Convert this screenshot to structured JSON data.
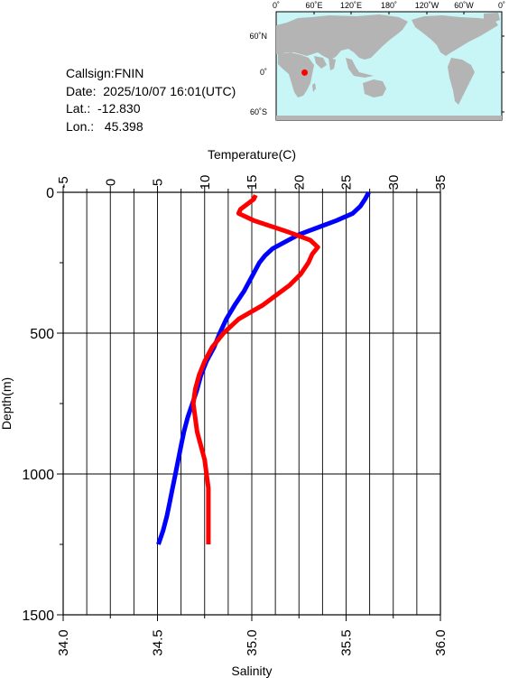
{
  "info": {
    "callsign": "Callsign:FNIN",
    "date": "Date:  2025/10/07 16:01(UTC)",
    "lat": "Lat.:  -12.830",
    "lon": "Lon.:   45.398"
  },
  "map": {
    "top_labels": [
      "0˚",
      "60˚E",
      "120˚E",
      "180˚",
      "120˚W",
      "60˚W",
      "0˚"
    ],
    "right_labels": [
      "60˚N",
      "0˚",
      "60˚S"
    ],
    "ocean_color": "#c8f5f5",
    "land_color": "#b4b4b4",
    "marker_color": "#ff0000",
    "station": {
      "lon": 45.398,
      "lat": -12.83
    }
  },
  "chart_data": {
    "type": "line",
    "title": "",
    "temperature_axis": {
      "label": "Temperature(C)",
      "ticks": [
        -5,
        0,
        5,
        10,
        15,
        20,
        25,
        30,
        35
      ],
      "range": [
        -5,
        35
      ]
    },
    "salinity_axis": {
      "label": "Salinity",
      "ticks": [
        "34.0",
        "34.5",
        "35.0",
        "35.5",
        "36.0"
      ],
      "range": [
        34.0,
        36.0
      ]
    },
    "depth_axis": {
      "label": "Depth(m)",
      "ticks": [
        0,
        500,
        1000,
        1500
      ],
      "range": [
        0,
        1500
      ],
      "inverted": true
    },
    "grid": true,
    "series": [
      {
        "color": "#0000ff",
        "axis": "temperature",
        "points": [
          [
            27.4,
            0
          ],
          [
            27.0,
            25
          ],
          [
            26.5,
            50
          ],
          [
            25.7,
            75
          ],
          [
            24.0,
            100
          ],
          [
            22.0,
            125
          ],
          [
            20.0,
            150
          ],
          [
            18.6,
            175
          ],
          [
            17.2,
            200
          ],
          [
            16.4,
            225
          ],
          [
            15.8,
            250
          ],
          [
            15.0,
            300
          ],
          [
            14.2,
            350
          ],
          [
            13.2,
            400
          ],
          [
            12.3,
            450
          ],
          [
            11.6,
            500
          ],
          [
            11.0,
            550
          ],
          [
            10.2,
            600
          ],
          [
            9.6,
            650
          ],
          [
            9.2,
            700
          ],
          [
            8.7,
            750
          ],
          [
            8.2,
            800
          ],
          [
            7.8,
            850
          ],
          [
            7.5,
            900
          ],
          [
            7.2,
            950
          ],
          [
            6.9,
            1000
          ],
          [
            6.6,
            1050
          ],
          [
            6.3,
            1100
          ],
          [
            6.0,
            1150
          ],
          [
            5.6,
            1200
          ],
          [
            5.1,
            1250
          ]
        ]
      },
      {
        "color": "#ff0000",
        "axis": "salinity",
        "points": [
          [
            35.02,
            10
          ],
          [
            35.01,
            25
          ],
          [
            34.94,
            60
          ],
          [
            34.93,
            75
          ],
          [
            35.01,
            100
          ],
          [
            35.19,
            140
          ],
          [
            35.31,
            170
          ],
          [
            35.35,
            195
          ],
          [
            35.32,
            220
          ],
          [
            35.3,
            250
          ],
          [
            35.26,
            290
          ],
          [
            35.2,
            330
          ],
          [
            35.06,
            400
          ],
          [
            34.93,
            450
          ],
          [
            34.85,
            500
          ],
          [
            34.79,
            550
          ],
          [
            34.75,
            600
          ],
          [
            34.72,
            650
          ],
          [
            34.7,
            700
          ],
          [
            34.69,
            750
          ],
          [
            34.7,
            800
          ],
          [
            34.71,
            850
          ],
          [
            34.73,
            900
          ],
          [
            34.75,
            950
          ],
          [
            34.76,
            1000
          ],
          [
            34.77,
            1050
          ],
          [
            34.77,
            1100
          ],
          [
            34.77,
            1150
          ],
          [
            34.77,
            1200
          ],
          [
            34.77,
            1250
          ]
        ]
      }
    ]
  }
}
